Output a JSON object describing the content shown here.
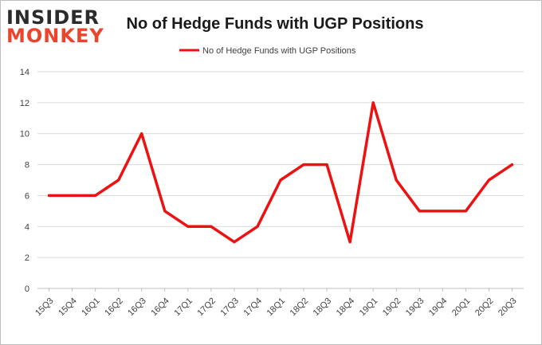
{
  "logo": {
    "line1": "INSIDER",
    "line2": "MONKEY"
  },
  "chart_data": {
    "type": "line",
    "title": "No of Hedge Funds with UGP Positions",
    "categories": [
      "15Q3",
      "15Q4",
      "16Q1",
      "16Q2",
      "16Q3",
      "16Q4",
      "17Q1",
      "17Q2",
      "17Q3",
      "17Q4",
      "18Q1",
      "18Q2",
      "18Q3",
      "18Q4",
      "19Q1",
      "19Q2",
      "19Q3",
      "19Q4",
      "20Q1",
      "20Q2",
      "20Q3"
    ],
    "series": [
      {
        "name": "No of Hedge Funds with UGP Positions",
        "values": [
          6,
          6,
          6,
          7,
          10,
          5,
          4,
          4,
          3,
          4,
          7,
          8,
          8,
          3,
          12,
          7,
          5,
          5,
          5,
          7,
          8
        ]
      }
    ],
    "ylim": [
      0,
      14
    ],
    "yticks": [
      0,
      2,
      4,
      6,
      8,
      10,
      12,
      14
    ],
    "xlabel": "",
    "ylabel": "",
    "grid": true,
    "legend": "top-center",
    "colors": {
      "line": "#ee1111",
      "grid": "#d9d9d9",
      "text": "#404040",
      "title": "#1a1a1a",
      "logo_dark": "#2b2b2b",
      "logo_red": "#e8452c"
    }
  }
}
